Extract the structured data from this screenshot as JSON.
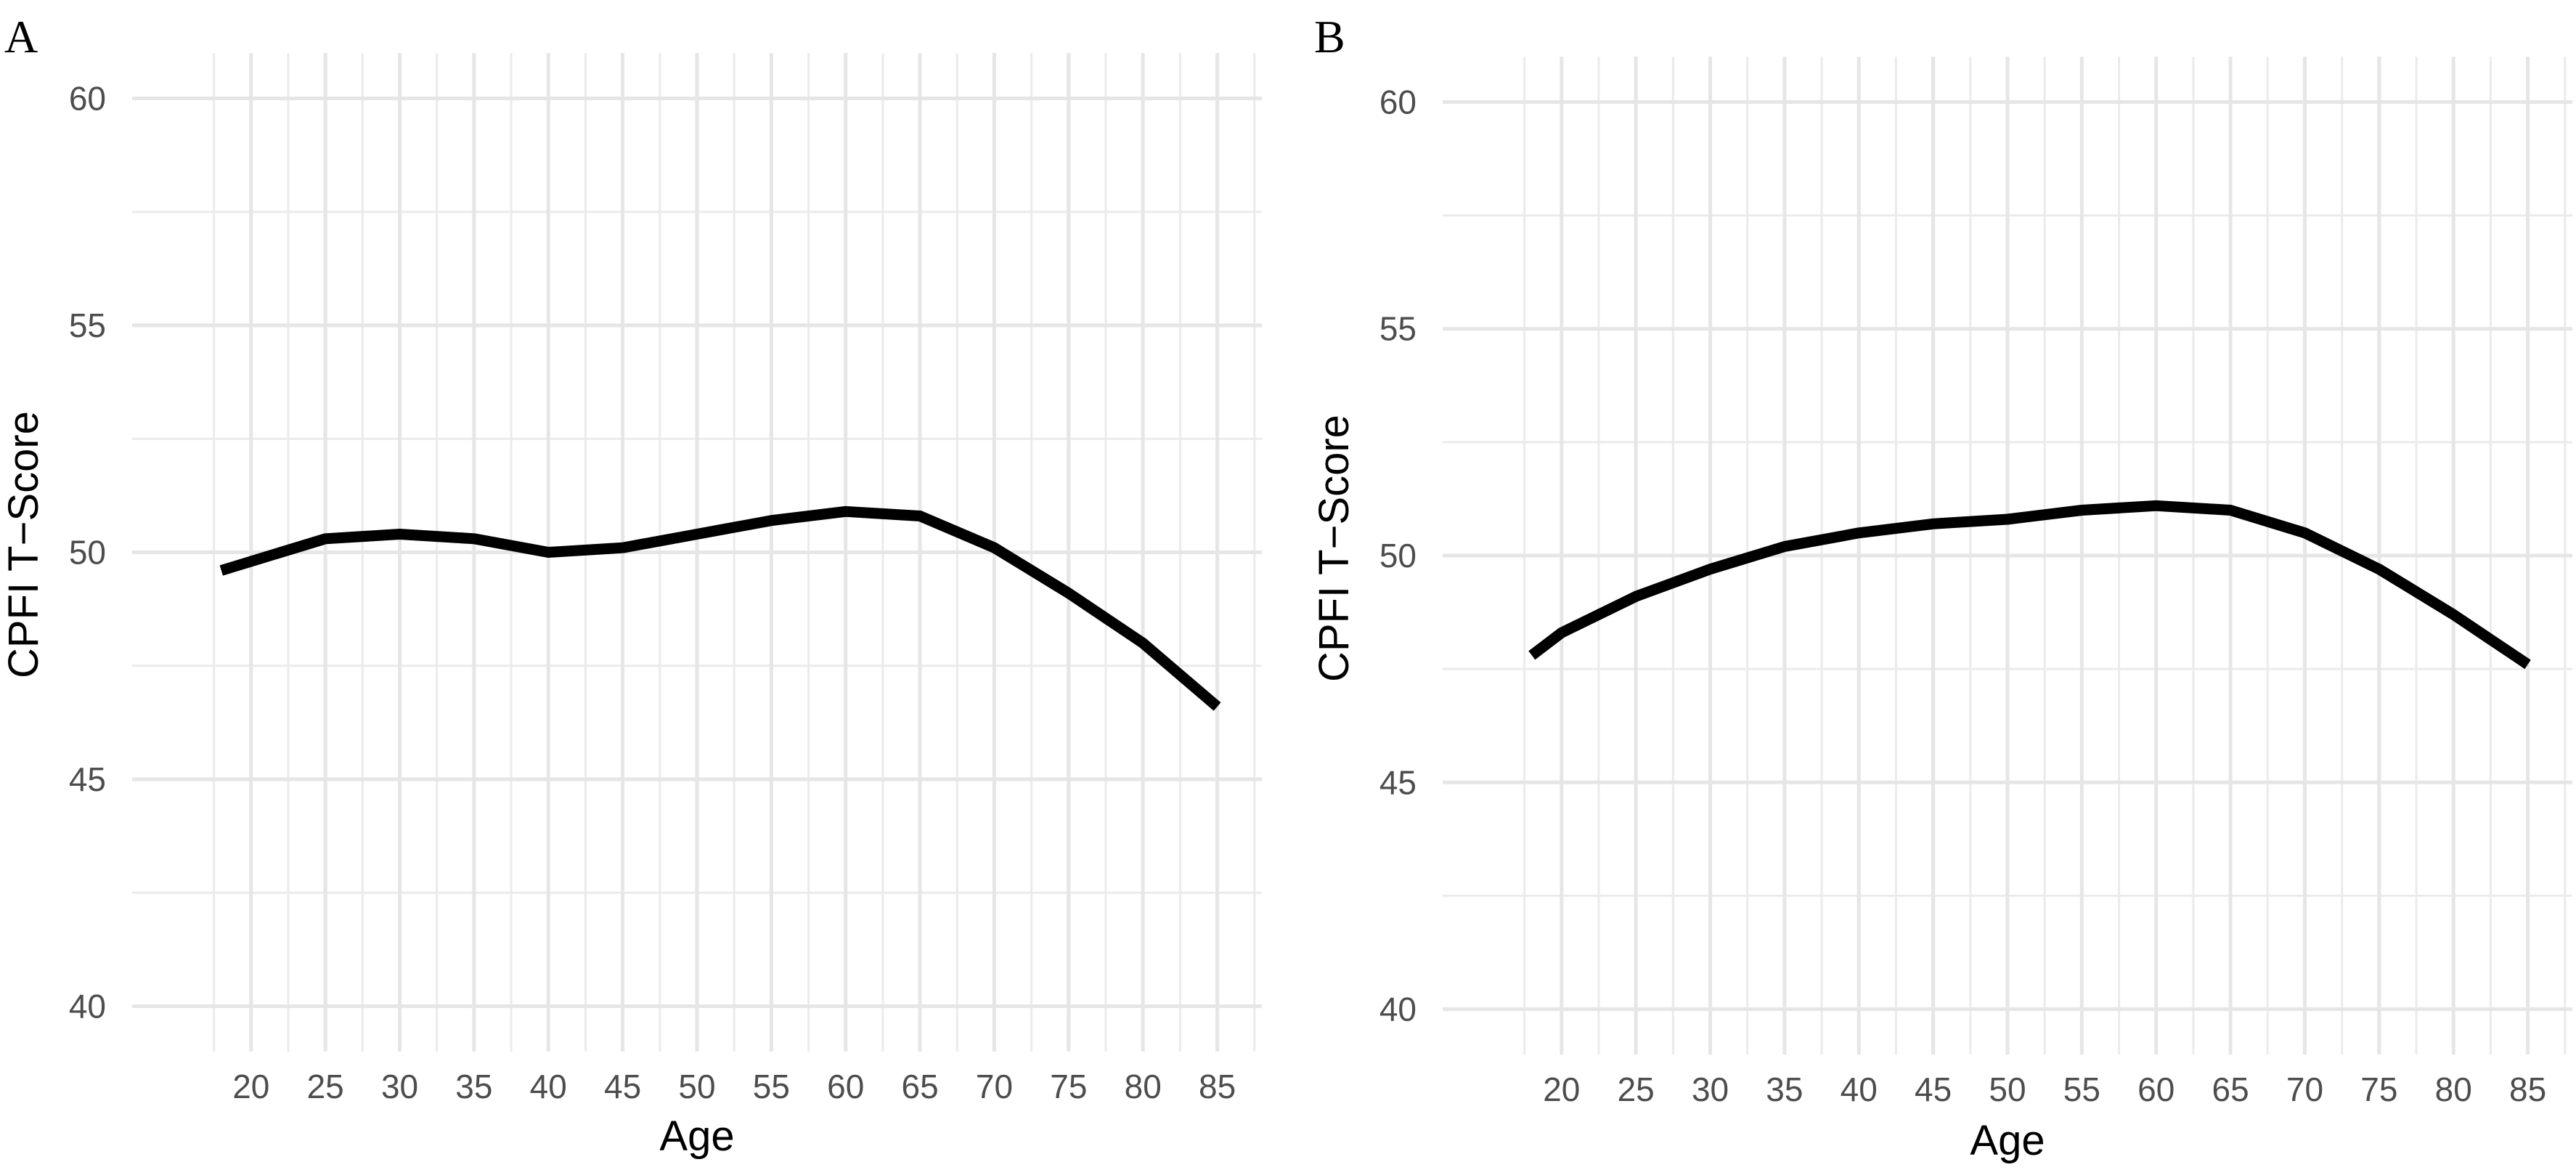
{
  "chart_data": [
    {
      "panel": "A",
      "type": "line",
      "xlabel": "Age",
      "ylabel": "CPFI T−Score",
      "xlim": [
        12,
        88
      ],
      "ylim": [
        39,
        61
      ],
      "xticks": [
        20,
        25,
        30,
        35,
        40,
        45,
        50,
        55,
        60,
        65,
        70,
        75,
        80,
        85
      ],
      "yticks": [
        40,
        45,
        50,
        55,
        60
      ],
      "grid": true,
      "line_color": "#000000",
      "series": [
        {
          "x": [
            18,
            20,
            25,
            30,
            35,
            40,
            45,
            50,
            55,
            60,
            65,
            70,
            75,
            80,
            85
          ],
          "y": [
            49.6,
            49.8,
            50.3,
            50.4,
            50.3,
            50.0,
            50.1,
            50.4,
            50.7,
            50.9,
            50.8,
            50.1,
            49.1,
            48.0,
            46.6
          ]
        }
      ]
    },
    {
      "panel": "B",
      "type": "line",
      "xlabel": "Age",
      "ylabel": "CPFI T−Score",
      "xlim": [
        12,
        88
      ],
      "ylim": [
        39,
        61
      ],
      "xticks": [
        20,
        25,
        30,
        35,
        40,
        45,
        50,
        55,
        60,
        65,
        70,
        75,
        80,
        85
      ],
      "yticks": [
        40,
        45,
        50,
        55,
        60
      ],
      "grid": true,
      "line_color": "#000000",
      "series": [
        {
          "x": [
            18,
            20,
            25,
            30,
            35,
            40,
            45,
            50,
            55,
            60,
            65,
            70,
            75,
            80,
            85
          ],
          "y": [
            47.8,
            48.3,
            49.1,
            49.7,
            50.2,
            50.5,
            50.7,
            50.8,
            51.0,
            51.1,
            51.0,
            50.5,
            49.7,
            48.7,
            47.6
          ]
        }
      ]
    }
  ]
}
